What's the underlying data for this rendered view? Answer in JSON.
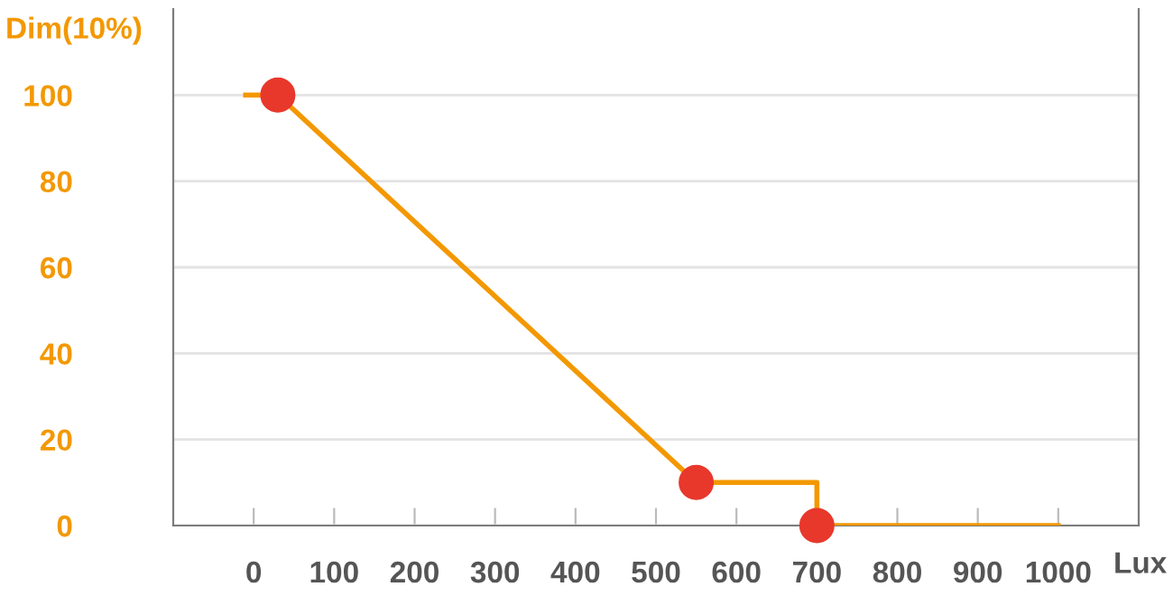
{
  "chart_data": {
    "type": "line",
    "xlabel": "Lux",
    "ylabel": "Dim(10%)",
    "xlim": [
      -100,
      1100
    ],
    "ylim": [
      0,
      120
    ],
    "xticks": [
      0,
      100,
      200,
      300,
      400,
      500,
      600,
      700,
      800,
      900,
      1000
    ],
    "yticks": [
      0,
      20,
      40,
      60,
      80,
      100
    ],
    "grid": "y",
    "legend": false,
    "series": [
      {
        "color": "#f39800",
        "x": [
          -10,
          30,
          550,
          700,
          700,
          1000
        ],
        "values": [
          100,
          100,
          10,
          10,
          0,
          0
        ],
        "marker": "none"
      },
      {
        "type": "scatter",
        "color": "#e8382c",
        "x": [
          30,
          550,
          700
        ],
        "values": [
          100,
          10,
          0
        ],
        "marker": "circle"
      }
    ]
  }
}
